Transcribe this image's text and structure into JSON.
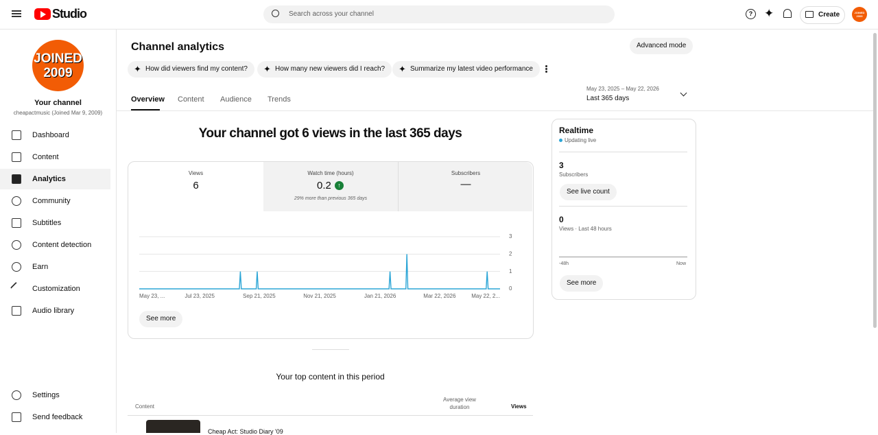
{
  "header": {
    "logo": "Studio",
    "search_placeholder": "Search across your channel",
    "create": "Create",
    "avatar": [
      "JOINED",
      "2009"
    ]
  },
  "sidebar": {
    "avatar": [
      "JOINED",
      "2009"
    ],
    "channel_title": "Your channel",
    "channel_subtitle": "cheapactmusic (Joined Mar 9, 2009)",
    "nav": [
      "Dashboard",
      "Content",
      "Analytics",
      "Community",
      "Subtitles",
      "Content detection",
      "Earn",
      "Customization",
      "Audio library"
    ],
    "footer": [
      "Settings",
      "Send feedback"
    ]
  },
  "page": {
    "title": "Channel analytics",
    "advanced": "Advanced mode",
    "chips": [
      "How did viewers find my content?",
      "How many new viewers did I reach?",
      "Summarize my latest video performance"
    ],
    "tabs": [
      "Overview",
      "Content",
      "Audience",
      "Trends"
    ],
    "date_range": "May 23, 2025 – May 22, 2026",
    "period": "Last 365 days",
    "headline": "Your channel got 6 views in the last 365 days"
  },
  "metrics": [
    {
      "label": "Views",
      "value": "6"
    },
    {
      "label": "Watch time (hours)",
      "value": "0.2",
      "note": "29% more than previous 365 days"
    },
    {
      "label": "Subscribers",
      "value": "—"
    }
  ],
  "chart": {
    "type": "line",
    "color": "#2ba5d6",
    "grid": true,
    "x": [
      0,
      101,
      102,
      103,
      118,
      119,
      120,
      252,
      253,
      254,
      269,
      270,
      271,
      350,
      351,
      352,
      364
    ],
    "values": [
      0,
      0,
      1,
      0,
      0,
      1,
      0,
      0,
      1,
      0,
      0,
      2,
      0,
      0,
      1,
      0,
      0
    ],
    "xlim": [
      0,
      364
    ],
    "ylim": [
      0,
      3
    ],
    "yticks": [
      0,
      1,
      2,
      3
    ],
    "xticks": [
      {
        "value": 0,
        "label": "May 23, ..."
      },
      {
        "value": 61,
        "label": "Jul 23, 2025"
      },
      {
        "value": 121,
        "label": "Sep 21, 2025"
      },
      {
        "value": 182,
        "label": "Nov 21, 2025"
      },
      {
        "value": 243,
        "label": "Jan 21, 2026"
      },
      {
        "value": 303,
        "label": "Mar 22, 2026"
      },
      {
        "value": 364,
        "label": "May 22, 2..."
      }
    ]
  },
  "see_more": "See more",
  "realtime": {
    "title": "Realtime",
    "status": "Updating live",
    "subscribers": "3",
    "subscribers_label": "Subscribers",
    "live_button": "See live count",
    "views": "0",
    "views_label": "Views · Last 48 hours",
    "axis": [
      "-48h",
      "Now"
    ],
    "button": "See more"
  },
  "top_content": {
    "title": "Your top content in this period",
    "columns": [
      "Content",
      "Average view duration",
      "Views"
    ],
    "rows": [
      {
        "title": "Cheap Act: Studio Diary '09"
      }
    ]
  }
}
